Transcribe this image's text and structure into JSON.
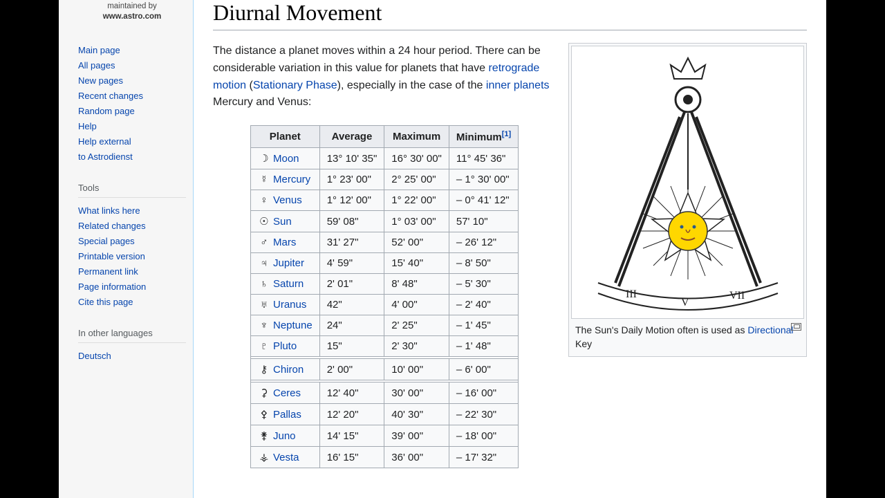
{
  "logo": {
    "line1": "maintained by",
    "line2": "www.astro.com"
  },
  "sidebar": {
    "groups": [
      {
        "heading": "",
        "items": [
          "Main page",
          "All pages",
          "New pages",
          "Recent changes",
          "Random page",
          "Help",
          "Help external",
          "to Astrodienst"
        ]
      },
      {
        "heading": "Tools",
        "items": [
          "What links here",
          "Related changes",
          "Special pages",
          "Printable version",
          "Permanent link",
          "Page information",
          "Cite this page"
        ]
      },
      {
        "heading": "In other languages",
        "items": [
          "Deutsch"
        ]
      }
    ]
  },
  "title": "Diurnal Movement",
  "intro": {
    "pre": "The distance a planet moves within a 24 hour period. There can be considerable variation in this value for planets that have ",
    "link1": "retrograde motion",
    "mid1": " (",
    "link2": "Stationary Phase",
    "mid2": "), especially in the case of the ",
    "link3": "inner planets",
    "post": " Mercury and Venus:"
  },
  "figure": {
    "caption_pre": "The Sun's Daily Motion often is used as ",
    "caption_link": "Directional",
    "caption_post": " Key"
  },
  "table": {
    "headers": [
      "Planet",
      "Average",
      "Maximum",
      "Minimum"
    ],
    "ref": "[1]",
    "rows": [
      {
        "sym": "☽",
        "name": "Moon",
        "avg": "13° 10' 35\"",
        "max": "16° 30' 00\"",
        "min": "11° 45' 36\""
      },
      {
        "sym": "☿",
        "name": "Mercury",
        "avg": "1° 23' 00\"",
        "max": "2° 25' 00\"",
        "min": "– 1° 30' 00\""
      },
      {
        "sym": "♀",
        "name": "Venus",
        "avg": "1° 12' 00\"",
        "max": "1° 22' 00\"",
        "min": "– 0° 41' 12\""
      },
      {
        "sym": "☉",
        "name": "Sun",
        "avg": "59' 08\"",
        "max": "1° 03' 00\"",
        "min": "57' 10\""
      },
      {
        "sym": "♂",
        "name": "Mars",
        "avg": "31' 27\"",
        "max": "52' 00\"",
        "min": "– 26' 12\""
      },
      {
        "sym": "♃",
        "name": "Jupiter",
        "avg": "4' 59\"",
        "max": "15' 40\"",
        "min": "– 8' 50\""
      },
      {
        "sym": "♄",
        "name": "Saturn",
        "avg": "2' 01\"",
        "max": "8' 48\"",
        "min": "– 5' 30\""
      },
      {
        "sym": "♅",
        "name": "Uranus",
        "avg": "42\"",
        "max": "4' 00\"",
        "min": "– 2' 40\""
      },
      {
        "sym": "♆",
        "name": "Neptune",
        "avg": "24\"",
        "max": "2' 25\"",
        "min": "– 1' 45\""
      },
      {
        "sym": "♇",
        "name": "Pluto",
        "avg": "15\"",
        "max": "2' 30\"",
        "min": "– 1' 48\""
      }
    ],
    "rows2": [
      {
        "sym": "⚷",
        "name": "Chiron",
        "avg": "2' 00\"",
        "max": "10' 00\"",
        "min": "– 6' 00\""
      }
    ],
    "rows3": [
      {
        "sym": "⚳",
        "name": "Ceres",
        "avg": "12' 40\"",
        "max": "30' 00\"",
        "min": "– 16' 00\""
      },
      {
        "sym": "⚴",
        "name": "Pallas",
        "avg": "12' 20\"",
        "max": "40' 30\"",
        "min": "– 22' 30\""
      },
      {
        "sym": "⚵",
        "name": "Juno",
        "avg": "14' 15\"",
        "max": "39' 00\"",
        "min": "– 18' 00\""
      },
      {
        "sym": "⚶",
        "name": "Vesta",
        "avg": "16' 15\"",
        "max": "36' 00\"",
        "min": "– 17' 32\""
      }
    ]
  }
}
